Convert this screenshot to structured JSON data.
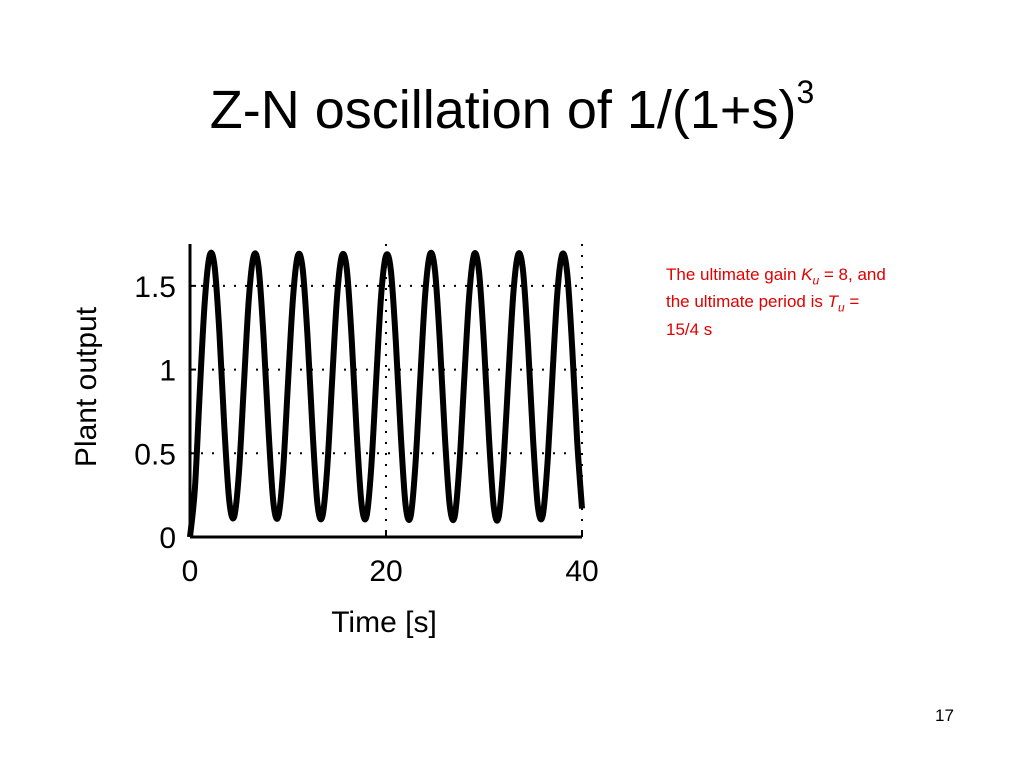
{
  "slide": {
    "title_main": "Z-N oscillation of 1/(1+s)",
    "title_sup": "3",
    "page_number": "17"
  },
  "note": {
    "prefix": "The ultimate gain ",
    "ku_symbol": "K",
    "ku_sub": "u",
    "ku_value": " = 8, and",
    "line2": "the ultimate period is ",
    "tu_symbol": "T",
    "tu_sub": "u",
    "tu_value": " =",
    "line3": "15/4 s"
  },
  "chart_data": {
    "type": "line",
    "xlabel": "Time [s]",
    "ylabel": "Plant output",
    "xlim": [
      0,
      40
    ],
    "ylim": [
      0,
      1.75
    ],
    "xticks": [
      0,
      20,
      40
    ],
    "xtick_labels": [
      "0",
      "20",
      "40"
    ],
    "yticks": [
      0,
      0.5,
      1,
      1.5
    ],
    "ytick_labels": [
      "0",
      "0.5",
      "1",
      "1.5"
    ],
    "grid": true,
    "line_color": "#000000",
    "series": [
      {
        "x": [
          0,
          0.5,
          1,
          1.5,
          2,
          2.5,
          3,
          3.5,
          4,
          4.5,
          5,
          5.5,
          6,
          6.5,
          7,
          7.5,
          8,
          8.5,
          9,
          9.5,
          10,
          10.5,
          11,
          11.5,
          12,
          12.5,
          13,
          13.5,
          14,
          14.5,
          15,
          15.5,
          16,
          16.5,
          17,
          17.5,
          18,
          18.5,
          19,
          19.5,
          20,
          20.5,
          21,
          21.5,
          22,
          22.5,
          23,
          23.5,
          24,
          24.5,
          25,
          25.5,
          26,
          26.5,
          27,
          27.5,
          28,
          28.5,
          29,
          29.5,
          30,
          30.5,
          31,
          31.5,
          32,
          32.5,
          33,
          33.5,
          34,
          34.5,
          35,
          35.5,
          36,
          36.5,
          37,
          37.5,
          38,
          38.5,
          39,
          39.5,
          40
        ],
        "y": [
          0,
          0.29,
          0.87,
          1.4,
          1.68,
          1.62,
          1.22,
          0.66,
          0.22,
          0.12,
          0.39,
          0.91,
          1.42,
          1.68,
          1.61,
          1.2,
          0.65,
          0.21,
          0.12,
          0.4,
          0.92,
          1.42,
          1.68,
          1.6,
          1.19,
          0.64,
          0.2,
          0.12,
          0.41,
          0.93,
          1.43,
          1.68,
          1.6,
          1.18,
          0.63,
          0.2,
          0.12,
          0.42,
          0.94,
          1.44,
          1.68,
          1.59,
          1.17,
          0.62,
          0.19,
          0.12,
          0.43,
          0.95,
          1.45,
          1.69,
          1.59,
          1.16,
          0.61,
          0.19,
          0.12,
          0.44,
          0.96,
          1.45,
          1.69,
          1.58,
          1.15,
          0.6,
          0.18,
          0.12,
          0.45,
          0.97,
          1.46,
          1.69,
          1.58,
          1.14,
          0.59,
          0.18,
          0.13,
          0.46,
          0.98,
          1.47,
          1.69,
          1.57,
          1.13,
          0.58,
          0.17
        ]
      }
    ]
  }
}
